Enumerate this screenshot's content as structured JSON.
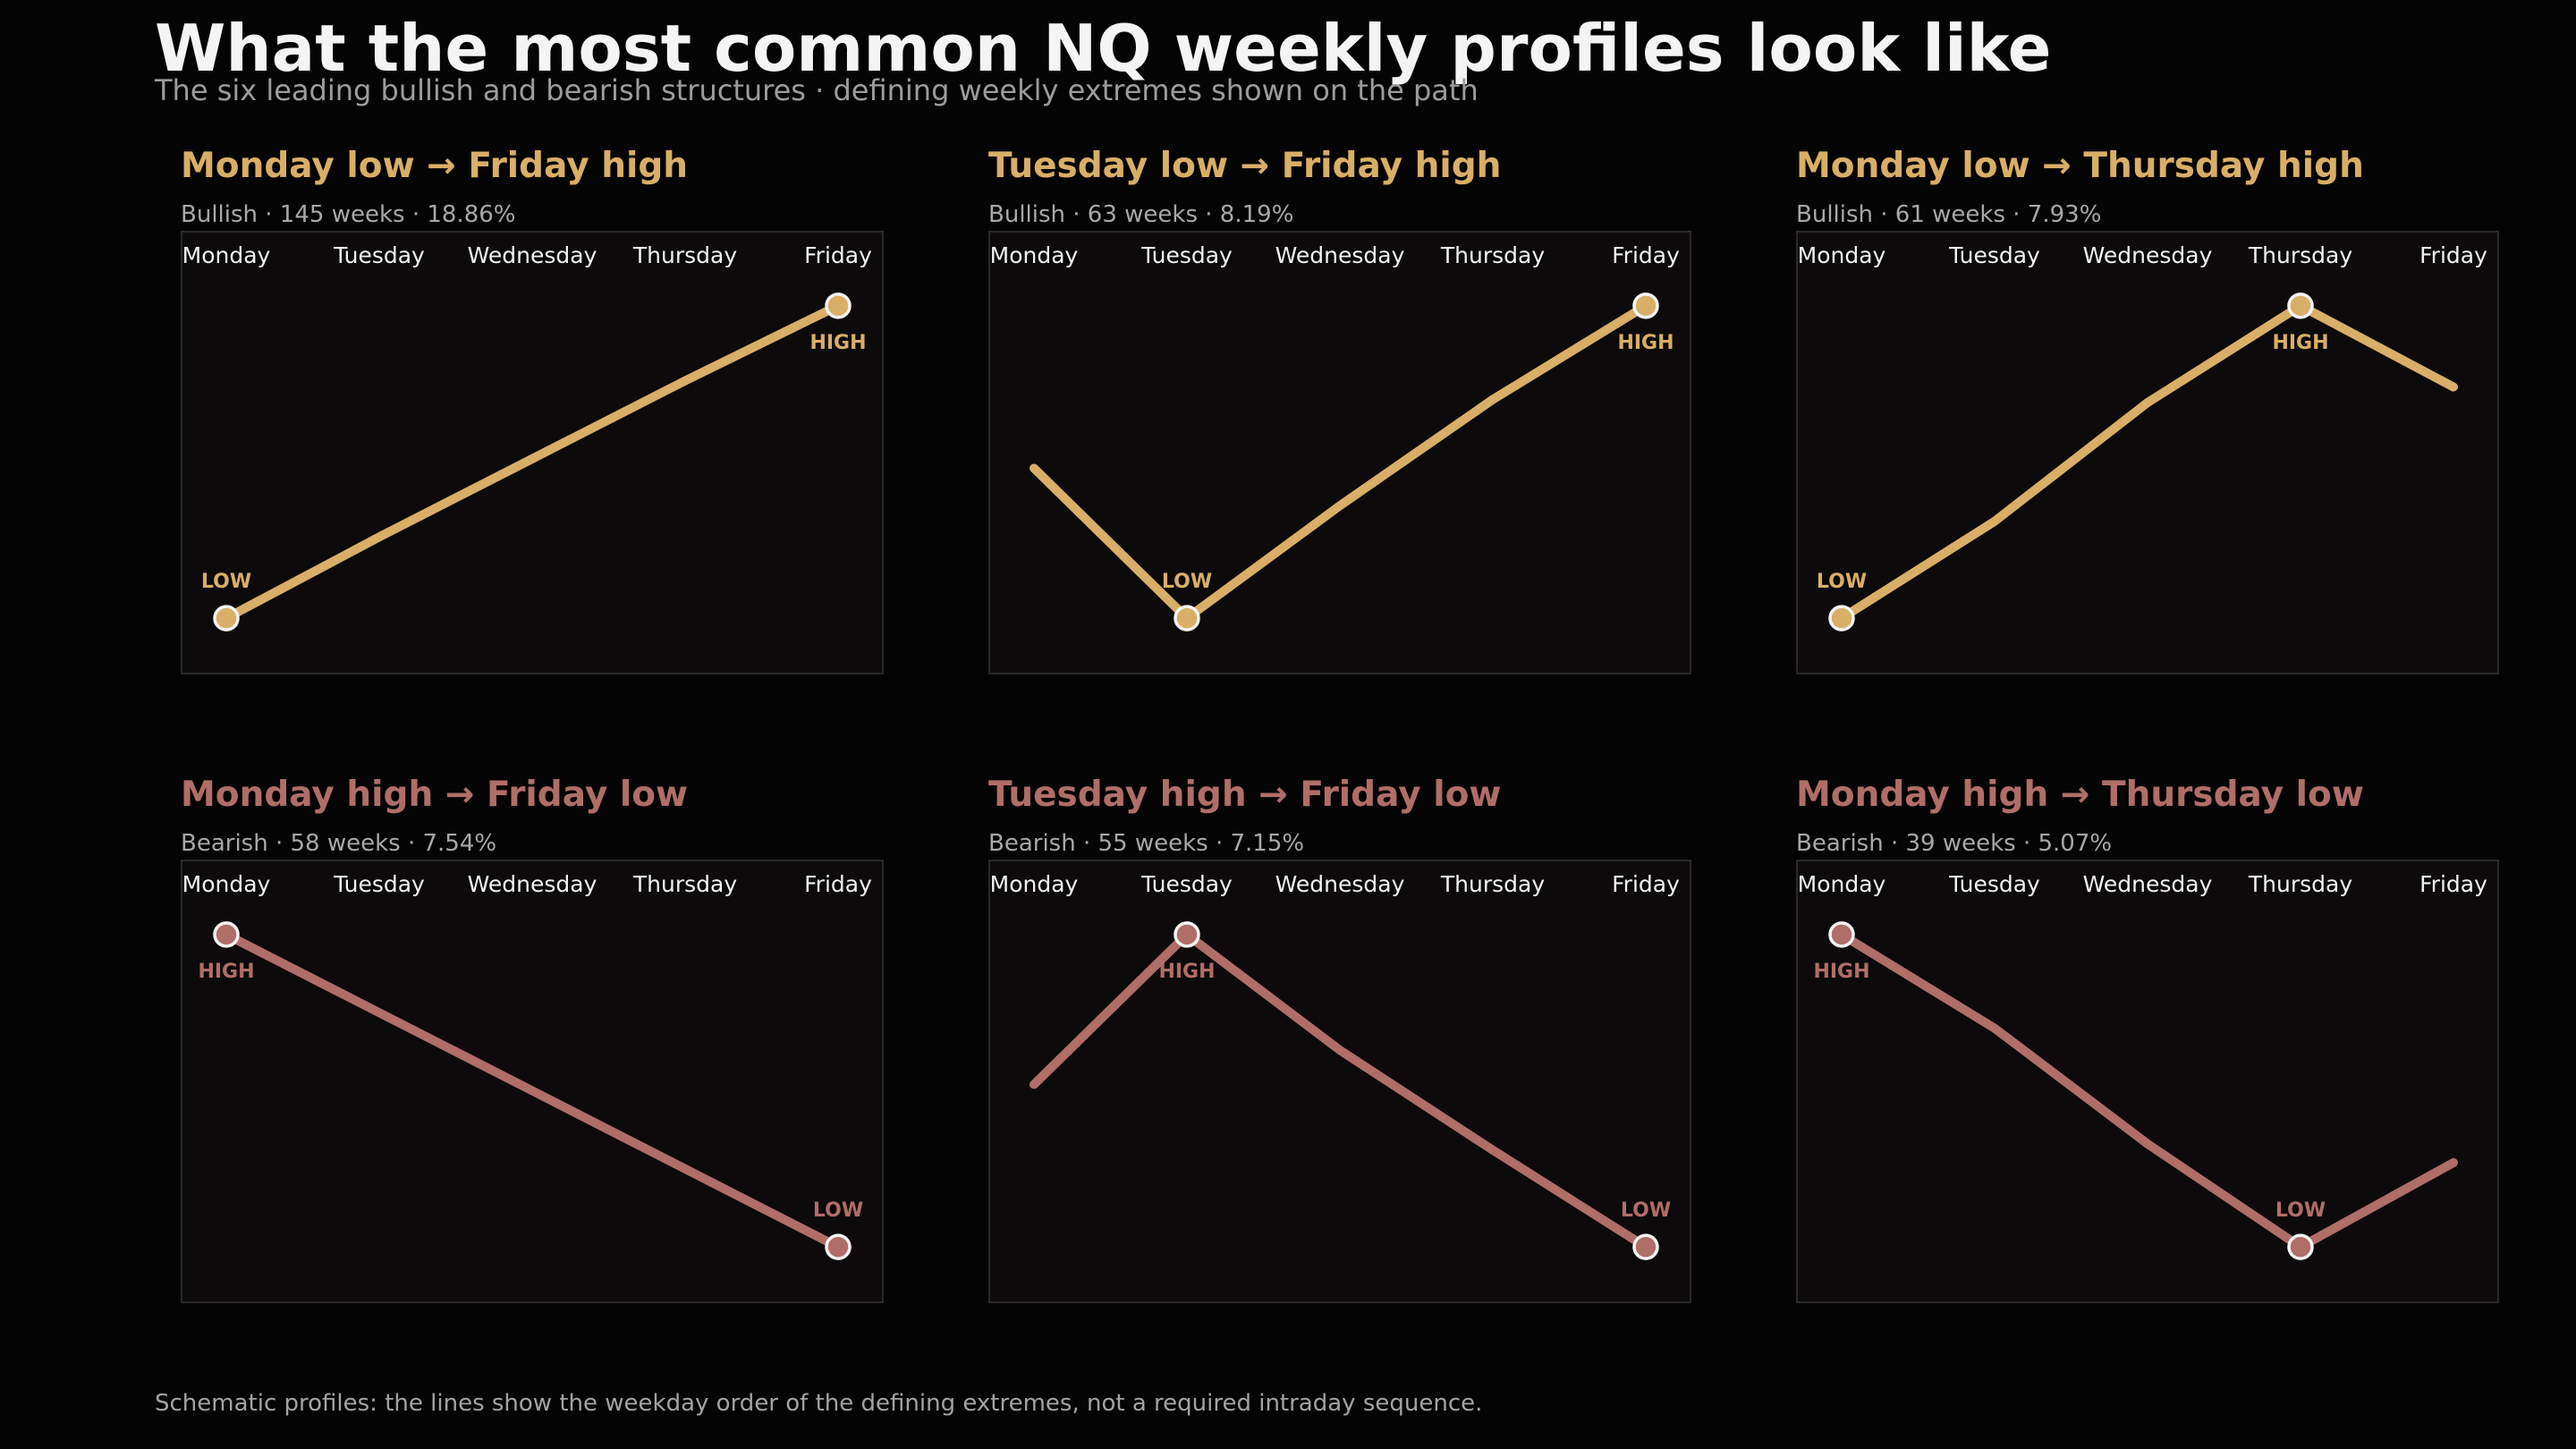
{
  "title": "What the most common NQ weekly profiles look like",
  "subtitle": "The six leading bullish and bearish structures · defining weekly extremes shown on the path",
  "footnote": "Schematic profiles: the lines show the weekday order of the defining extremes, not a required intraday sequence.",
  "colors": {
    "bullish": "#d9ae66",
    "bearish": "#b16d68",
    "background": "#040404",
    "panel": "#0c0a0a"
  },
  "days": [
    "Monday",
    "Tuesday",
    "Wednesday",
    "Thursday",
    "Friday"
  ],
  "chart_data": [
    {
      "type": "line",
      "title": "Monday low → Friday high",
      "subtitle": "Bullish · 145 weeks · 18.86%",
      "bias": "bullish",
      "categories": [
        "Monday",
        "Tuesday",
        "Wednesday",
        "Thursday",
        "Friday"
      ],
      "values": [
        0.0,
        0.26,
        0.51,
        0.76,
        1.0
      ],
      "ylim": [
        -0.18,
        1.24
      ],
      "low_index": 0,
      "high_index": 4,
      "low_label": "LOW",
      "high_label": "HIGH"
    },
    {
      "type": "line",
      "title": "Tuesday low → Friday high",
      "subtitle": "Bullish · 63 weeks · 8.19%",
      "bias": "bullish",
      "categories": [
        "Monday",
        "Tuesday",
        "Wednesday",
        "Thursday",
        "Friday"
      ],
      "values": [
        0.48,
        0.0,
        0.36,
        0.7,
        1.0
      ],
      "ylim": [
        -0.18,
        1.24
      ],
      "low_index": 1,
      "high_index": 4,
      "low_label": "LOW",
      "high_label": "HIGH"
    },
    {
      "type": "line",
      "title": "Monday low → Thursday high",
      "subtitle": "Bullish · 61 weeks · 7.93%",
      "bias": "bullish",
      "categories": [
        "Monday",
        "Tuesday",
        "Wednesday",
        "Thursday",
        "Friday"
      ],
      "values": [
        0.0,
        0.31,
        0.69,
        1.0,
        0.74
      ],
      "ylim": [
        -0.18,
        1.24
      ],
      "low_index": 0,
      "high_index": 3,
      "low_label": "LOW",
      "high_label": "HIGH"
    },
    {
      "type": "line",
      "title": "Monday high → Friday low",
      "subtitle": "Bearish · 58 weeks · 7.54%",
      "bias": "bearish",
      "categories": [
        "Monday",
        "Tuesday",
        "Wednesday",
        "Thursday",
        "Friday"
      ],
      "values": [
        1.0,
        0.75,
        0.5,
        0.25,
        0.0
      ],
      "ylim": [
        -0.18,
        1.24
      ],
      "low_index": 4,
      "high_index": 0,
      "low_label": "LOW",
      "high_label": "HIGH"
    },
    {
      "type": "line",
      "title": "Tuesday high → Friday low",
      "subtitle": "Bearish · 55 weeks · 7.15%",
      "bias": "bearish",
      "categories": [
        "Monday",
        "Tuesday",
        "Wednesday",
        "Thursday",
        "Friday"
      ],
      "values": [
        0.52,
        1.0,
        0.63,
        0.31,
        0.0
      ],
      "ylim": [
        -0.18,
        1.24
      ],
      "low_index": 4,
      "high_index": 1,
      "low_label": "LOW",
      "high_label": "HIGH"
    },
    {
      "type": "line",
      "title": "Monday high → Thursday low",
      "subtitle": "Bearish · 39 weeks · 5.07%",
      "bias": "bearish",
      "categories": [
        "Monday",
        "Tuesday",
        "Wednesday",
        "Thursday",
        "Friday"
      ],
      "values": [
        1.0,
        0.7,
        0.33,
        0.0,
        0.27
      ],
      "ylim": [
        -0.18,
        1.24
      ],
      "low_index": 3,
      "high_index": 0,
      "low_label": "LOW",
      "high_label": "HIGH"
    }
  ]
}
